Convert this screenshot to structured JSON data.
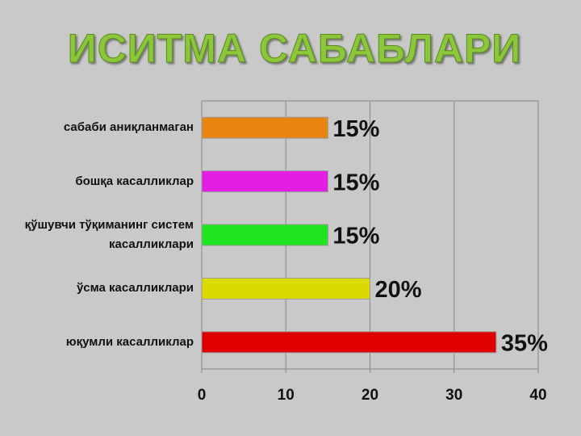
{
  "chart_data": {
    "type": "bar",
    "orientation": "horizontal",
    "title": "ИСИТМА САБАБЛАРИ",
    "categories": [
      "сабаби аниқланмаган",
      "бошқа касалликлар",
      "қўшувчи тўқиманинг систем касалликлари",
      "ўсма касалликлари",
      "юқумли касалликлар"
    ],
    "values": [
      15,
      15,
      15,
      20,
      35
    ],
    "value_labels": [
      "15%",
      "15%",
      "15%",
      "20%",
      "35%"
    ],
    "colors": [
      "#e8850f",
      "#e41ee4",
      "#1fe41f",
      "#dada00",
      "#e00000"
    ],
    "xlim": [
      0,
      40
    ],
    "xticks": [
      0,
      10,
      20,
      30,
      40
    ],
    "grid": true
  }
}
